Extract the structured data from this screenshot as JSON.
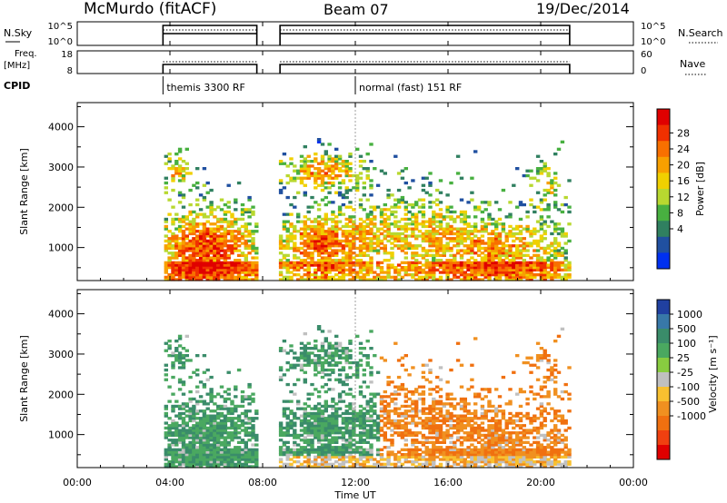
{
  "header": {
    "station": "McMurdo (fitACF)",
    "beam": "Beam 07",
    "date": "19/Dec/2014"
  },
  "summary_panels": {
    "nsky_label": "N.Sky",
    "nsky_ticks": [
      "10^5",
      "10^0"
    ],
    "nsearch_label": "N.Search",
    "nsearch_ticks": [
      "10^5",
      "10^0"
    ],
    "freq_label": "Freq.",
    "freq_unit": "[MHz]",
    "freq_ticks": [
      "18",
      "8"
    ],
    "nave_label": "Nave",
    "nave_ticks": [
      "60",
      "0"
    ],
    "cpid_label": "CPID",
    "cpid_modes": [
      {
        "label": "themis 3300 RF",
        "start_hour": 3.7
      },
      {
        "label": "normal (fast) 151 RF",
        "start_hour": 12.0
      }
    ],
    "data_segments": [
      [
        3.7,
        7.75
      ],
      [
        8.75,
        21.25
      ]
    ]
  },
  "chart_data": [
    {
      "type": "heatmap",
      "title": "",
      "ylabel": "Slant Range [km]",
      "xlabel": "",
      "ylim": [
        180,
        4600
      ],
      "xlim": [
        0,
        24
      ],
      "yticks": [
        1000,
        2000,
        3000,
        4000
      ],
      "colorbar": {
        "label": "Power [dB]",
        "ticks": [
          "28",
          "24",
          "20",
          "16",
          "12",
          "8",
          "4"
        ],
        "colors": [
          "#e00000",
          "#f03000",
          "#f87000",
          "#f8a000",
          "#f0d000",
          "#b8d830",
          "#48b040",
          "#308060",
          "#2050a0",
          "#0030f0"
        ]
      }
    },
    {
      "type": "heatmap",
      "title": "",
      "ylabel": "Slant Range [km]",
      "xlabel": "Time UT",
      "ylim": [
        180,
        4600
      ],
      "xlim": [
        0,
        24
      ],
      "yticks": [
        1000,
        2000,
        3000,
        4000
      ],
      "xticks": [
        "00:00",
        "04:00",
        "08:00",
        "12:00",
        "16:00",
        "20:00",
        "00:00"
      ],
      "colorbar": {
        "label": "Velocity [m s⁻¹]",
        "ticks": [
          "1000",
          "500",
          "100",
          "25",
          "-25",
          "-100",
          "-500",
          "-1000"
        ],
        "colors": [
          "#2040a0",
          "#3878a8",
          "#3a8c6a",
          "#4aa860",
          "#88cc40",
          "#c0c0c0",
          "#f8c030",
          "#f09020",
          "#f07010",
          "#f04010",
          "#e00000"
        ]
      }
    }
  ]
}
